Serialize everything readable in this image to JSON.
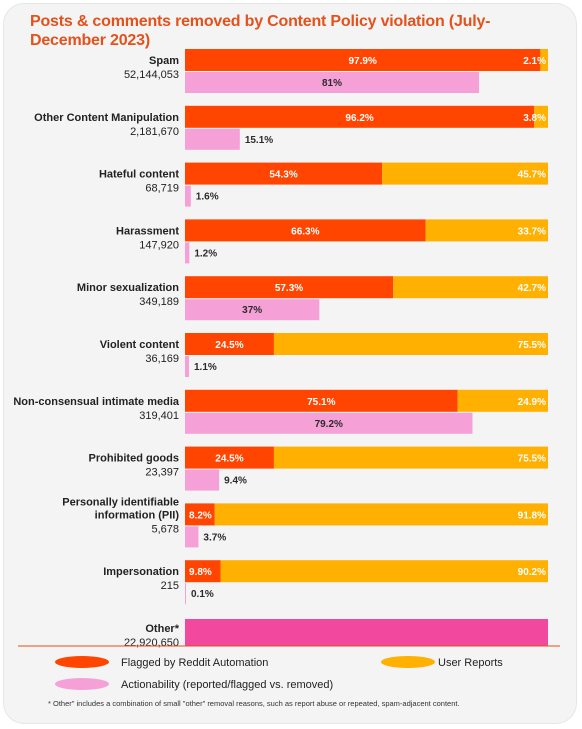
{
  "title": "Posts & comments removed by Content Policy violation (July-December 2023)",
  "colors": {
    "automation": "#ff4500",
    "user_reports": "#ffb000",
    "actionability": "#f6a0d8",
    "other": "#f2489e",
    "rule": "#e4511b"
  },
  "legend": {
    "automation": "Flagged by Reddit Automation",
    "user_reports": "User Reports",
    "actionability": "Actionability (reported/flagged vs. removed)"
  },
  "footnote": "* Other\" includes a combination of small \"other\" removal reasons, such as report abuse or repeated, spam-adjacent content.",
  "chart_data": {
    "type": "bar",
    "title": "Posts & comments removed by Content Policy violation (July-December 2023)",
    "categories": [
      {
        "name": "Spam",
        "count": "52,144,053"
      },
      {
        "name": "Other Content Manipulation",
        "count": "2,181,670"
      },
      {
        "name": "Hateful content",
        "count": "68,719"
      },
      {
        "name": "Harassment",
        "count": "147,920"
      },
      {
        "name": "Minor sexualization",
        "count": "349,189"
      },
      {
        "name": "Violent content",
        "count": "36,169"
      },
      {
        "name": "Non-consensual intimate media",
        "count": "319,401"
      },
      {
        "name": "Prohibited goods",
        "count": "23,397"
      },
      {
        "name": "Personally identifiable information (PII)",
        "count": "5,678"
      },
      {
        "name": "Impersonation",
        "count": "215"
      },
      {
        "name": "Other*",
        "count": "22,920,650"
      }
    ],
    "series": [
      {
        "name": "Flagged by Reddit Automation",
        "values": [
          97.9,
          96.2,
          54.3,
          66.3,
          57.3,
          24.5,
          75.1,
          24.5,
          8.2,
          9.8,
          null
        ]
      },
      {
        "name": "User Reports",
        "values": [
          2.1,
          3.8,
          45.7,
          33.7,
          42.7,
          75.5,
          24.9,
          75.5,
          91.8,
          90.2,
          null
        ]
      },
      {
        "name": "Actionability (reported/flagged vs. removed)",
        "values": [
          81,
          15.1,
          1.6,
          1.2,
          37,
          1.1,
          79.2,
          9.4,
          3.7,
          0.1,
          null
        ]
      }
    ],
    "xlim": [
      0,
      100
    ],
    "unit": "%",
    "legend_position": "bottom"
  }
}
